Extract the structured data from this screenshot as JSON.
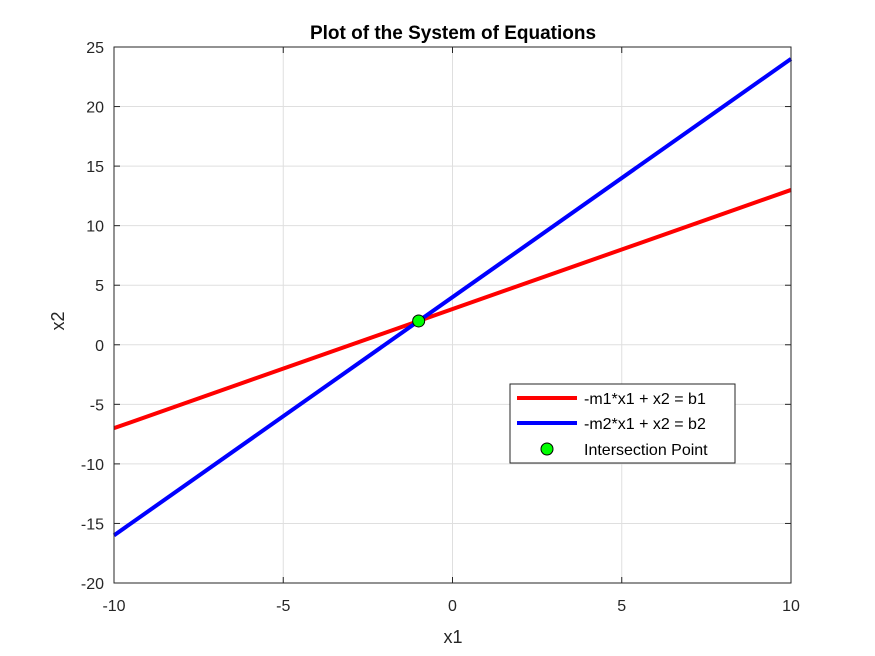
{
  "chart_data": {
    "type": "line",
    "title": "Plot of the System of Equations",
    "xlabel": "x1",
    "ylabel": "x2",
    "xlim": [
      -10,
      10
    ],
    "ylim": [
      -20,
      25
    ],
    "xticks": [
      -10,
      -5,
      0,
      5,
      10
    ],
    "yticks": [
      -20,
      -15,
      -10,
      -5,
      0,
      5,
      10,
      15,
      20,
      25
    ],
    "grid": true,
    "legend_position": "right",
    "series": [
      {
        "name": "-m1*x1 + x2 = b1",
        "x": [
          -10,
          10
        ],
        "y": [
          -7,
          13
        ],
        "color": "#ff0000",
        "style": "line"
      },
      {
        "name": "-m2*x1 + x2 = b2",
        "x": [
          -10,
          10
        ],
        "y": [
          -16,
          24
        ],
        "color": "#0000ff",
        "style": "line"
      },
      {
        "name": "Intersection Point",
        "x": [
          -1
        ],
        "y": [
          2
        ],
        "color": "#00ff00",
        "style": "marker"
      }
    ]
  }
}
